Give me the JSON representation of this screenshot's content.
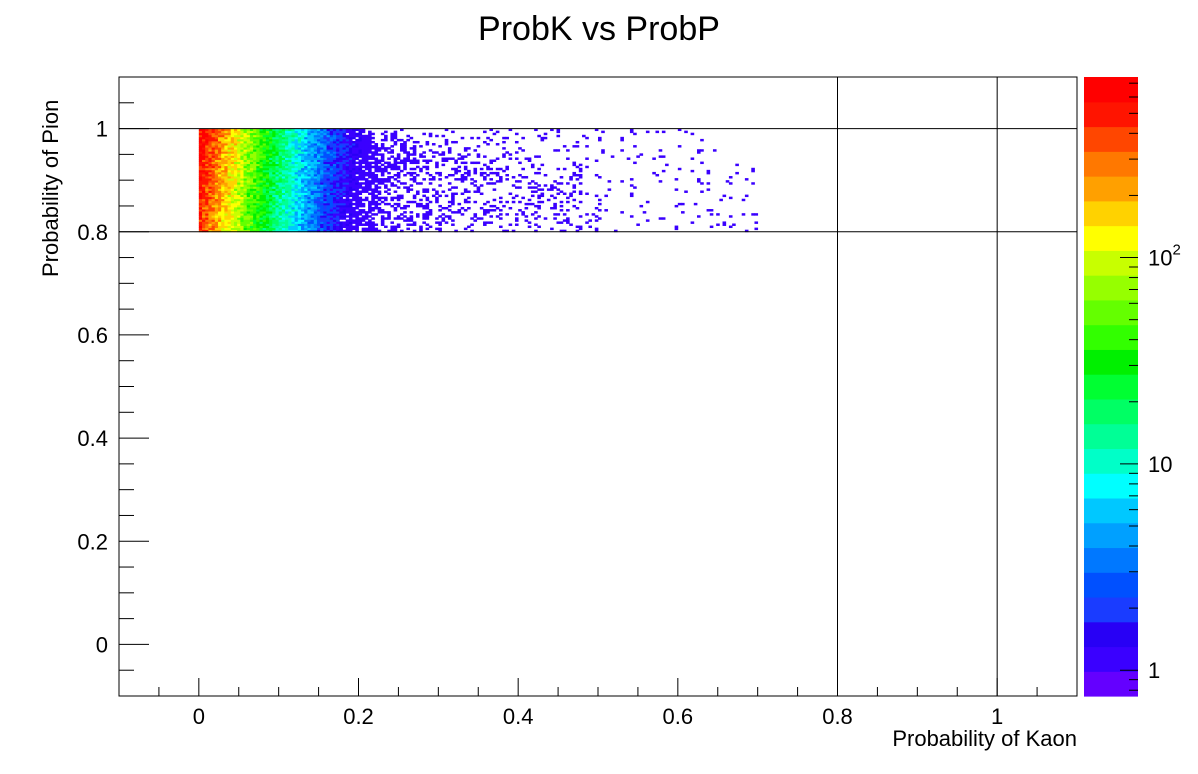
{
  "chart_data": {
    "type": "heatmap",
    "title": "ProbK vs ProbP",
    "xlabel": "Probability of Kaon",
    "ylabel": "Probability of Pion",
    "xlim": [
      -0.1,
      1.1
    ],
    "ylim": [
      -0.1,
      1.1
    ],
    "x_ticks": [
      0,
      0.2,
      0.4,
      0.6,
      0.8,
      1
    ],
    "x_tick_labels": [
      "0",
      "0.2",
      "0.4",
      "0.6",
      "0.8",
      "1"
    ],
    "y_ticks": [
      0,
      0.2,
      0.4,
      0.6,
      0.8,
      1
    ],
    "y_tick_labels": [
      "0",
      "0.2",
      "0.4",
      "0.6",
      "0.8",
      "1"
    ],
    "reference_lines": {
      "vertical": [
        0.8,
        1.0
      ],
      "horizontal": [
        0.8,
        1.0
      ]
    },
    "color_scale": {
      "type": "log",
      "min": 0.75,
      "max": 750,
      "tick_values": [
        1,
        10,
        100
      ],
      "tick_labels": [
        "1",
        "10",
        "10^2"
      ],
      "palette": [
        "#6400ff",
        "#3a00ff",
        "#2800f5",
        "#1a3cff",
        "#0050ff",
        "#0078ff",
        "#00a0ff",
        "#00c8ff",
        "#00ffff",
        "#00ffc8",
        "#00ff96",
        "#00ff64",
        "#00ff32",
        "#00f000",
        "#32ff00",
        "#64ff00",
        "#96ff00",
        "#c8ff00",
        "#ffff00",
        "#ffd200",
        "#ffa000",
        "#ff7800",
        "#ff4600",
        "#ff1400",
        "#ff0000"
      ]
    },
    "bins": {
      "x_range": [
        0,
        0.7
      ],
      "y_range": [
        0.8,
        1.0
      ],
      "x_bin_width": 0.004,
      "y_bin_width": 0.004,
      "description_of_density": [
        {
          "x_range": [
            0,
            0.01
          ],
          "count": 500
        },
        {
          "x_range": [
            0.01,
            0.03
          ],
          "count": 150
        },
        {
          "x_range": [
            0.03,
            0.06
          ],
          "count": 30
        },
        {
          "x_range": [
            0.06,
            0.12
          ],
          "count": 8
        },
        {
          "x_range": [
            0.12,
            0.25
          ],
          "count": 2
        },
        {
          "x_range": [
            0.25,
            0.7
          ],
          "count": 1
        }
      ]
    }
  }
}
